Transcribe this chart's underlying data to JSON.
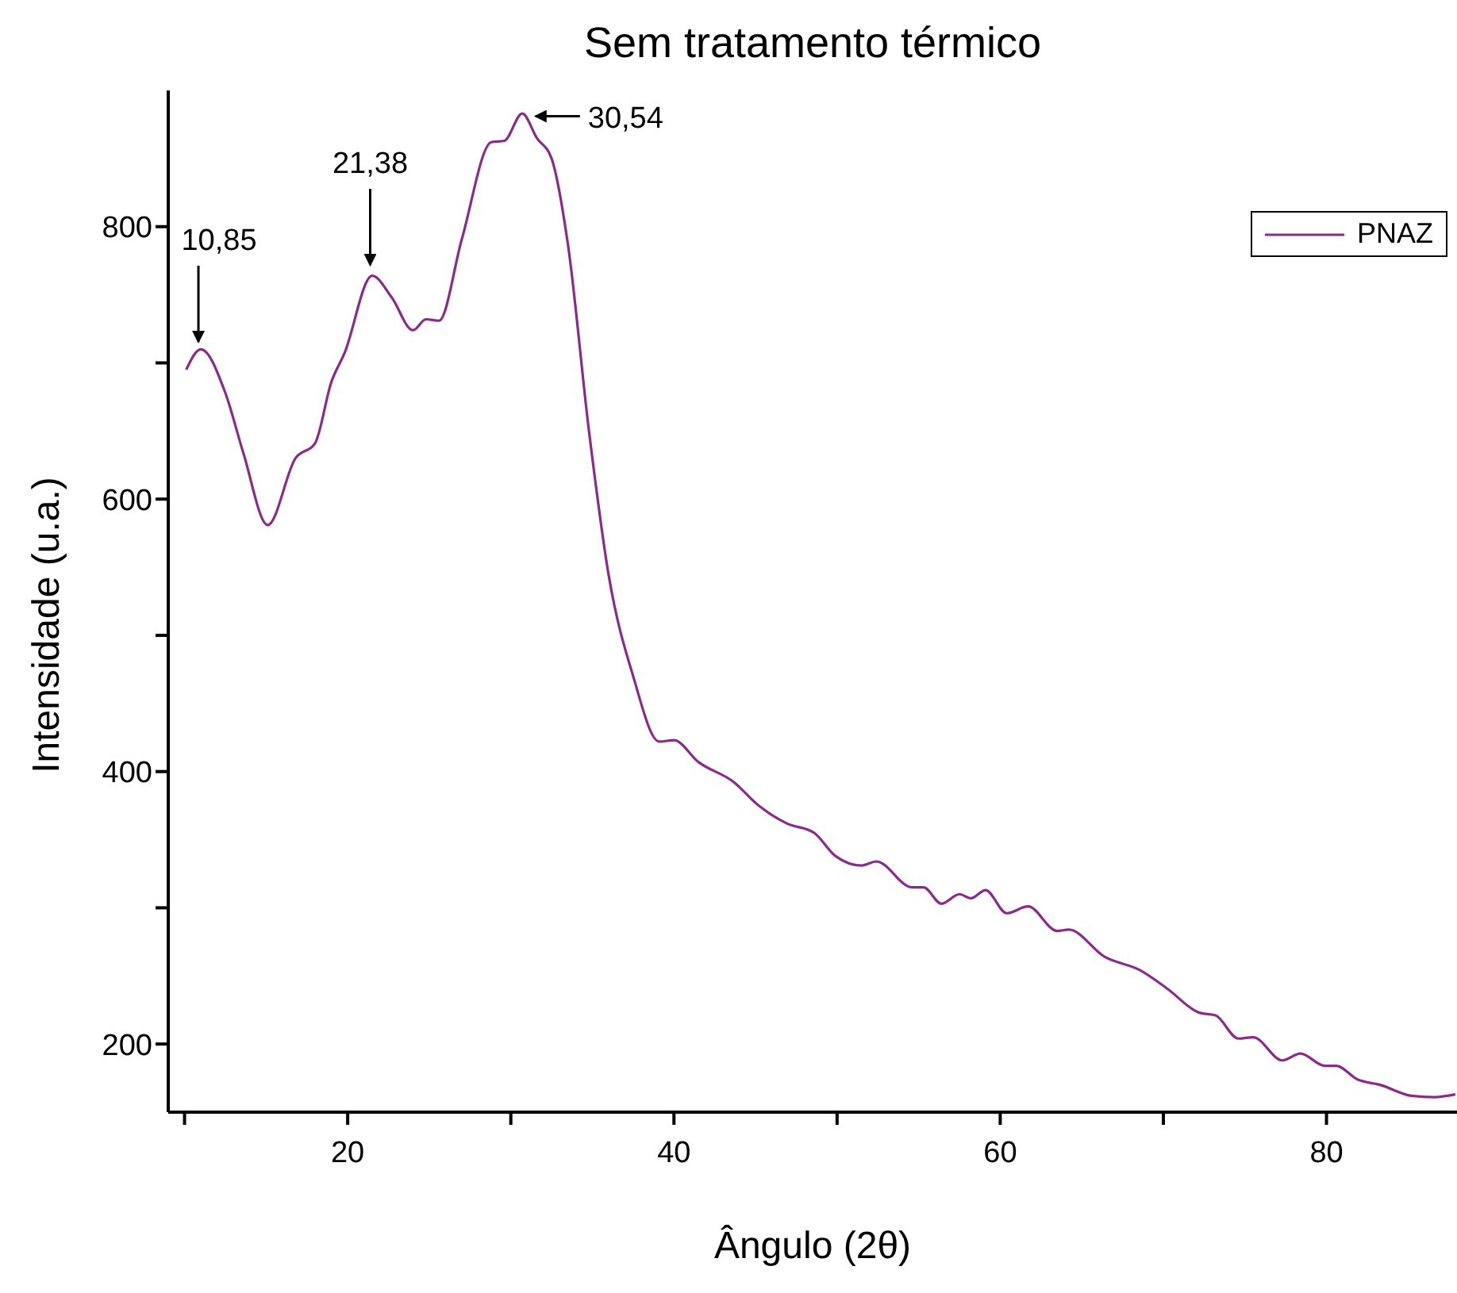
{
  "chart_data": {
    "type": "line",
    "title": "Sem tratamento térmico",
    "xlabel": "Ângulo (2θ)",
    "ylabel": "Intensidade (u.a.)",
    "xlim": [
      9,
      88
    ],
    "ylim": [
      150,
      900
    ],
    "xticks": [
      {
        "value": 10,
        "label": null
      },
      20,
      {
        "value": 30,
        "label": null
      },
      40,
      {
        "value": 50,
        "label": null
      },
      60,
      {
        "value": 70,
        "label": null
      },
      80
    ],
    "yticks": [
      200,
      {
        "value": 300,
        "label": null
      },
      400,
      {
        "value": 500,
        "label": null
      },
      600,
      {
        "value": 700,
        "label": null
      },
      800
    ],
    "legend": "top right",
    "marker": "none",
    "line_style": "solid",
    "series": [
      {
        "name": "PNAZ",
        "color": "#8b2a8b",
        "x": [
          10.1,
          11.0,
          12.5,
          13.6,
          15.1,
          16.8,
          18.0,
          19.0,
          19.8,
          21.5,
          22.7,
          24.0,
          24.8,
          25.6,
          27.0,
          28.8,
          29.6,
          30.7,
          31.6,
          32.5,
          33.5,
          34.8,
          36.0,
          37.5,
          39.1,
          40.0,
          41.5,
          43.7,
          45.1,
          46.9,
          48.6,
          49.9,
          51.5,
          52.4,
          54.6,
          55.3,
          56.4,
          57.5,
          58.2,
          59.1,
          60.4,
          61.7,
          63.5,
          64.2,
          66.4,
          68.6,
          70.2,
          72.2,
          73.2,
          74.6,
          75.5,
          77.3,
          78.4,
          79.9,
          80.6,
          81.9,
          83.3,
          85.2,
          86.6,
          87.9
        ],
        "values": [
          695,
          710,
          678,
          634,
          581,
          630,
          641,
          686,
          707,
          764,
          748,
          724,
          732,
          731,
          791,
          862,
          863,
          883,
          865,
          850,
          787,
          649,
          544,
          470,
          422,
          423,
          407,
          392,
          376,
          362,
          355,
          338,
          331,
          334,
          315,
          315,
          303,
          310,
          307,
          313,
          296,
          301,
          283,
          284,
          264,
          254,
          241,
          223,
          221,
          204,
          205,
          188,
          193,
          184,
          184,
          174,
          170,
          162,
          161,
          163
        ]
      }
    ],
    "annotations": [
      {
        "text": "10,85",
        "x": 10.85,
        "y": 710
      },
      {
        "text": "21,38",
        "x": 21.38,
        "y": 764
      },
      {
        "text": "30,54",
        "x": 30.54,
        "y": 883
      }
    ]
  }
}
